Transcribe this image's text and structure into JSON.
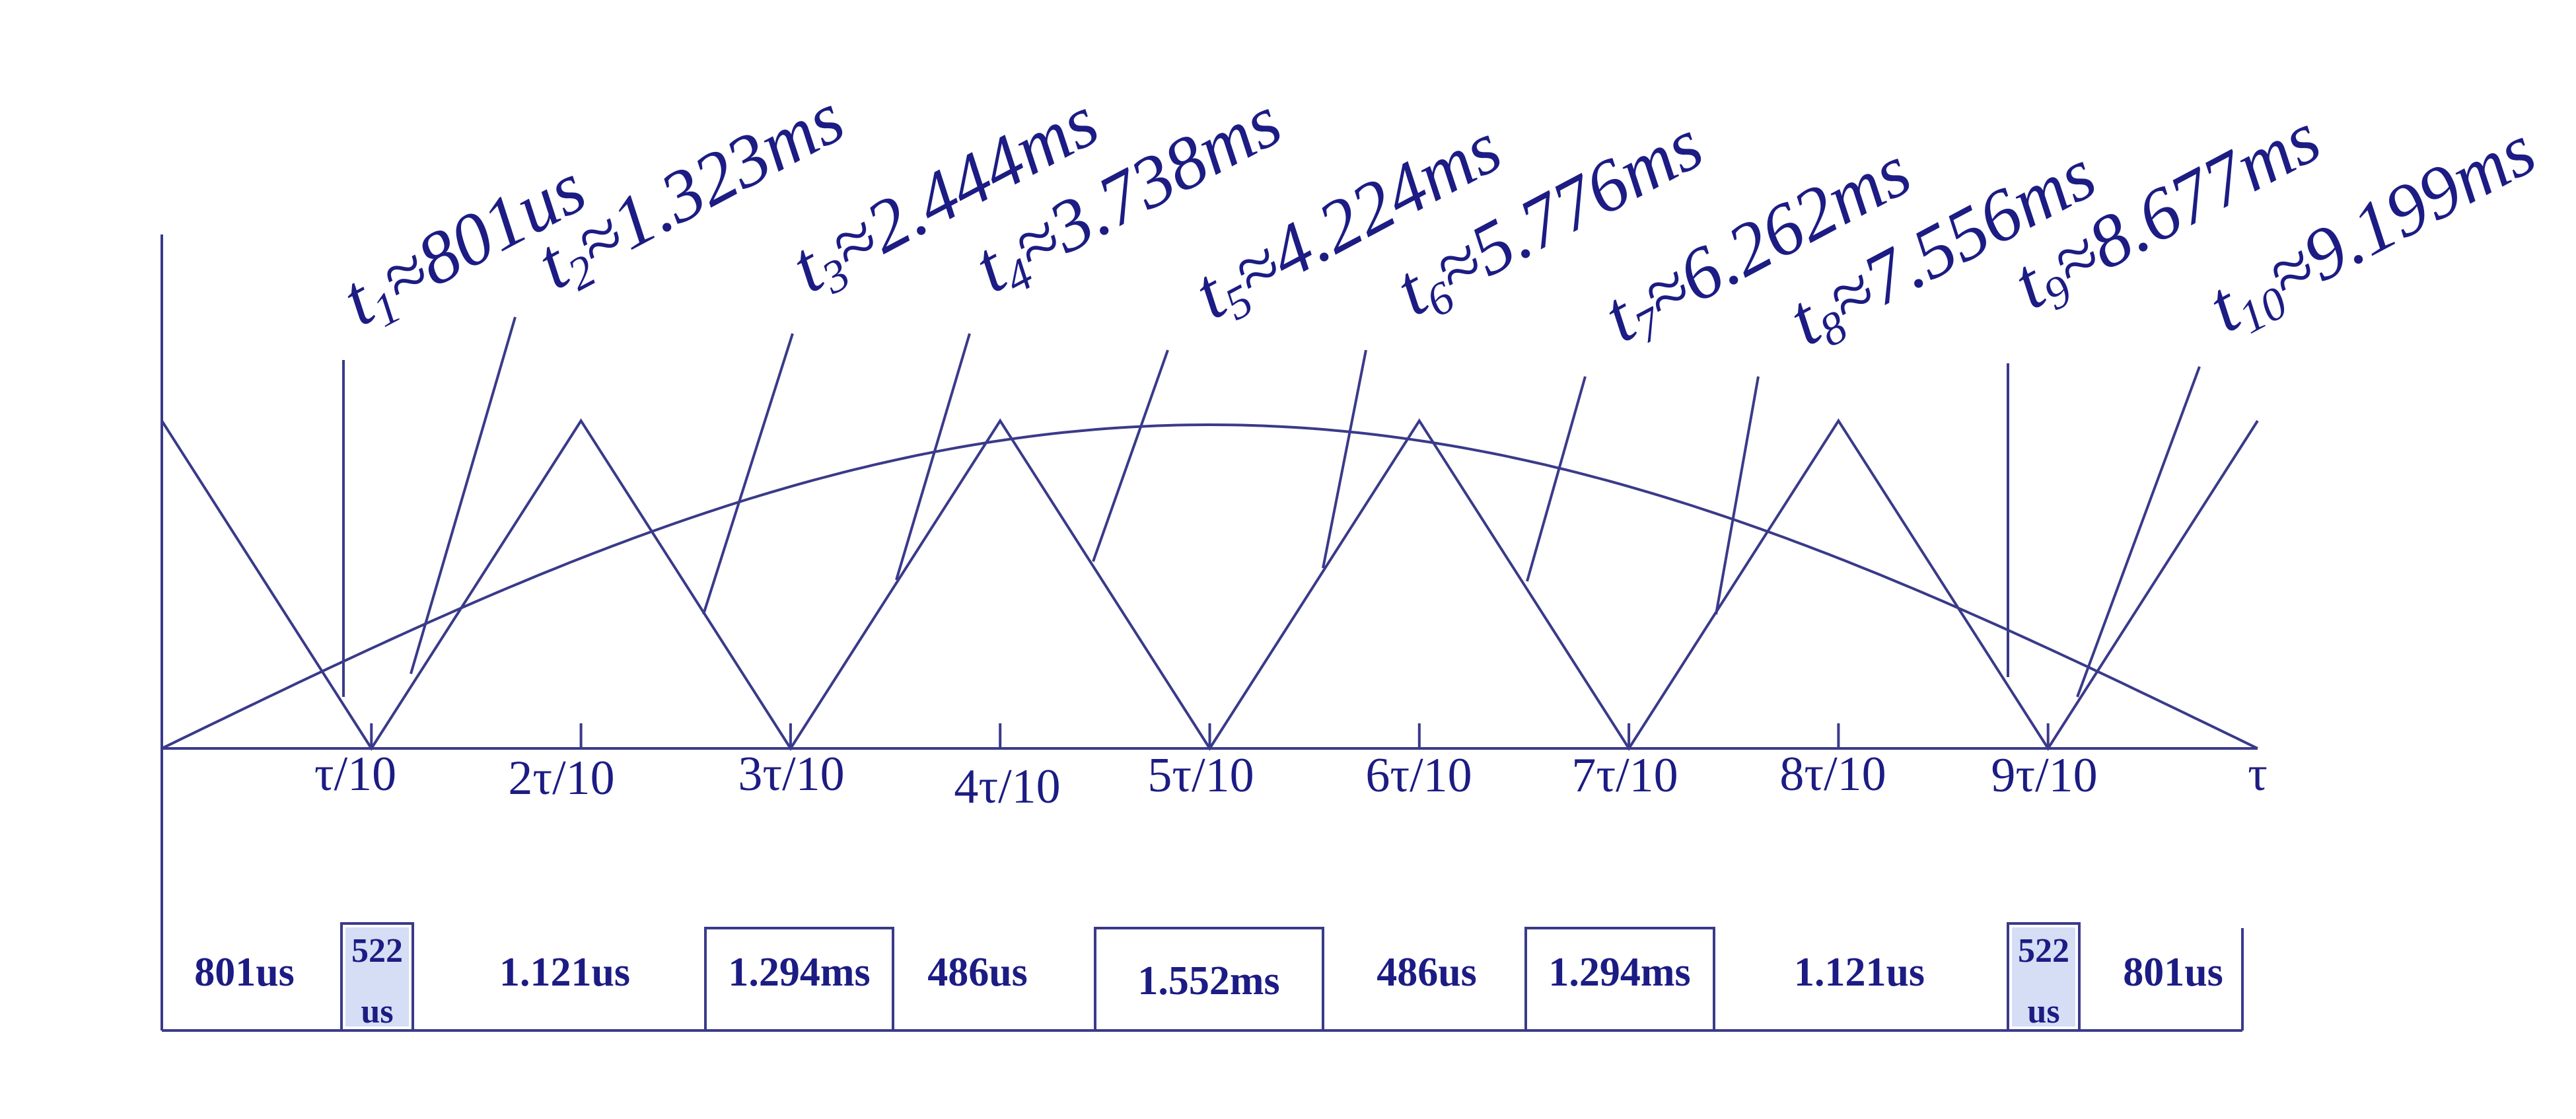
{
  "colors": {
    "line": "#3a3a8a",
    "text": "#1c1c84",
    "background": "#ffffff"
  },
  "crossings": [
    {
      "sub": "1",
      "value": "≈801us"
    },
    {
      "sub": "2",
      "value": "≈1.323ms"
    },
    {
      "sub": "3",
      "value": "≈2.444ms"
    },
    {
      "sub": "4",
      "value": "≈3.738ms"
    },
    {
      "sub": "5",
      "value": "≈4.224ms"
    },
    {
      "sub": "6",
      "value": "≈5.776ms"
    },
    {
      "sub": "7",
      "value": "≈6.262ms"
    },
    {
      "sub": "8",
      "value": "≈7.556ms"
    },
    {
      "sub": "9",
      "value": "≈8.677ms"
    },
    {
      "sub": "10",
      "value": "≈9.199ms"
    }
  ],
  "crossing_symbol": "t",
  "axis_ticks": [
    "τ/10",
    "2τ/10",
    "3τ/10",
    "4τ/10",
    "5τ/10",
    "6τ/10",
    "7τ/10",
    "8τ/10",
    "9τ/10",
    "τ"
  ],
  "pulse_segments": [
    {
      "label": "801us",
      "boxed": false
    },
    {
      "label": "522\nus",
      "boxed": true,
      "filled": true
    },
    {
      "label": "1.121us",
      "boxed": false
    },
    {
      "label": "1.294ms",
      "boxed": true
    },
    {
      "label": "486us",
      "boxed": false
    },
    {
      "label": "1.552ms",
      "boxed": true
    },
    {
      "label": "486us",
      "boxed": false
    },
    {
      "label": "1.294ms",
      "boxed": true
    },
    {
      "label": "1.121us",
      "boxed": false
    },
    {
      "label": "522\nus",
      "boxed": true,
      "filled": true
    },
    {
      "label": "801us",
      "boxed": false
    }
  ]
}
